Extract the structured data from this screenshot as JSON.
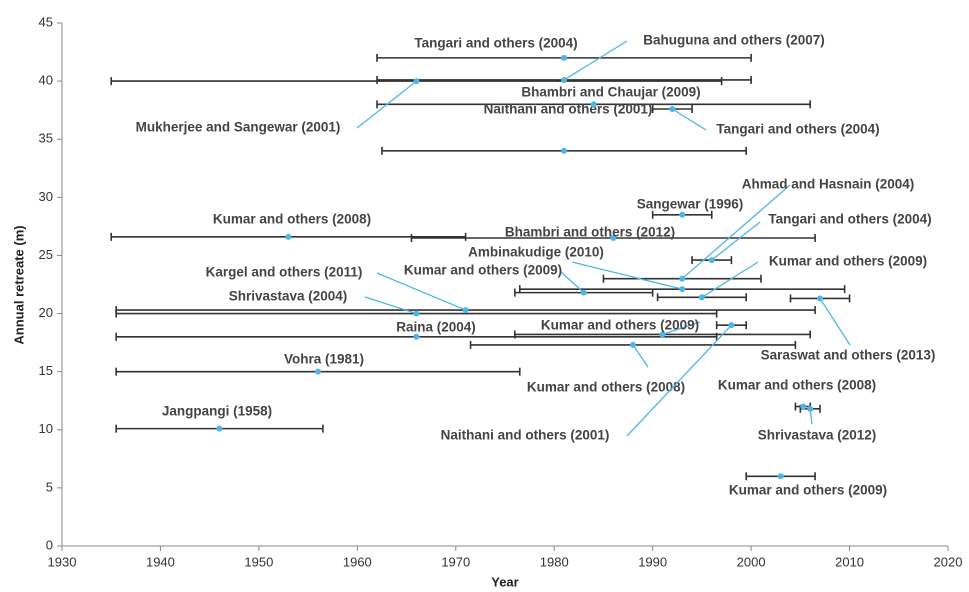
{
  "chart_data": {
    "type": "scatter",
    "xlabel": "Year",
    "ylabel": "Annual retreate (m)",
    "xlim": [
      1930,
      2020
    ],
    "ylim": [
      0,
      45
    ],
    "xticks": [
      1930,
      1940,
      1950,
      1960,
      1970,
      1980,
      1990,
      2000,
      2010,
      2020
    ],
    "yticks": [
      0,
      5,
      10,
      15,
      20,
      25,
      30,
      35,
      40,
      45
    ],
    "grid": false,
    "color": "#4db6e8",
    "bar_color": "#333333",
    "labels": [
      "Jangpangi (1958)",
      "Vohra (1981)",
      "Raina (2004)",
      "Shrivastava (2004)",
      "Kargel and others (2011)",
      "Kumar and others (2008)",
      "Bhambri and others (2012)",
      "Naithani and others (2001)",
      "Bhambri and Chaujar (2009)",
      "Tangari and others (2004)",
      "Mukherjee and Sangewar (2001)",
      "Bahuguna and others (2007)",
      "Tangari and others (2004)",
      "Sangewar (1996)",
      "Ahmad and Hasnain (2004)",
      "Tangari and others (2004)",
      "Ambinakudige (2010)",
      "Kumar and others (2009)",
      "Kumar and others (2009)",
      "Saraswat and others (2013)",
      "Kumar and others (2009)",
      "Kumar and others (2008)",
      "Naithani and others (2001)",
      "Kumar and others (2008)",
      "Shrivastava (2012)",
      "Kumar and others (2009)"
    ],
    "x": [
      1946,
      1956,
      1966,
      1966,
      1971,
      1953,
      1986,
      1981,
      1984,
      1992,
      1966,
      1981,
      1981,
      1993,
      1993,
      1996,
      1993,
      1983,
      1995,
      2007,
      1991,
      1988,
      1998,
      2005.3,
      2006,
      2003
    ],
    "values": [
      10.1,
      15,
      18,
      20,
      20.3,
      26.6,
      26.5,
      34,
      38,
      37.6,
      40,
      40.1,
      42,
      28.5,
      23,
      24.6,
      22.1,
      21.8,
      21.4,
      21.3,
      18.2,
      17.3,
      19,
      12,
      11.8,
      6
    ],
    "x_start": [
      1935.5,
      1935.5,
      1935.5,
      1935.5,
      1935.5,
      1935,
      1965.5,
      1962.5,
      1962,
      1990,
      1935,
      1962,
      1962,
      1990,
      1985,
      1994,
      1976.5,
      1976,
      1990.5,
      2004,
      1976,
      1971.5,
      1996.5,
      2004.5,
      2005,
      1999.5
    ],
    "x_end": [
      1956.5,
      1976.5,
      1996.5,
      1996.5,
      2006.5,
      1971,
      2006.5,
      1999.5,
      2006,
      1994,
      1997,
      2000,
      2000,
      1996,
      2001,
      1998,
      2009.5,
      1990,
      1999.5,
      2010,
      2006,
      2004.5,
      1999.5,
      2006,
      2007,
      2006.5
    ]
  }
}
